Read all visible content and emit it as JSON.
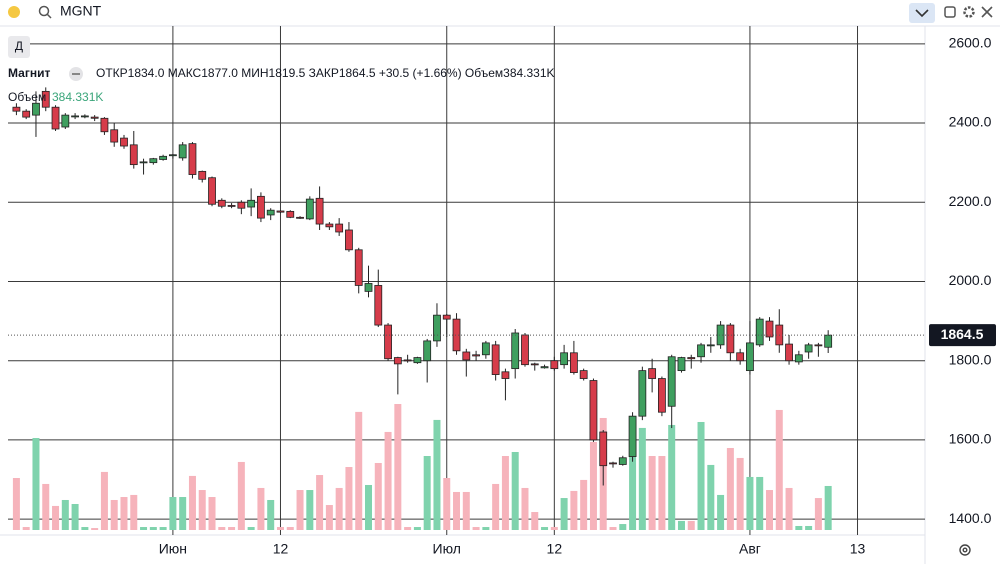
{
  "toolbar": {
    "symbol": "MGNT",
    "interval": "Д"
  },
  "chart_data": {
    "type": "candlestick",
    "title": "Магнит",
    "legend_text": "ОТКР1834.0 МАКС1877.0 МИН1819.5 ЗАКР1864.5 +30.5 (+1.66%) Объем384.331K",
    "volume_label": "Объем",
    "volume_value_label": "384.331K",
    "open": [
      2440,
      2430,
      2420,
      2480,
      2440,
      2390,
      2418,
      2418,
      2415,
      2412,
      2383,
      2362,
      2345,
      2300,
      2300,
      2308,
      2318,
      2312,
      2348,
      2278,
      2262,
      2205,
      2192,
      2200,
      2188,
      2215,
      2168,
      2178,
      2177,
      2162,
      2158,
      2210,
      2145,
      2145,
      2130,
      2080,
      1975,
      1990,
      1890,
      1808,
      1802,
      1795,
      1800,
      1850,
      1915,
      1905,
      1822,
      1815,
      1815,
      1840,
      1772,
      1780,
      1865,
      1792,
      1782,
      1800,
      1790,
      1820,
      1775,
      1750,
      1620,
      1542,
      1538,
      1558,
      1660,
      1780,
      1755,
      1685,
      1775,
      1808,
      1810,
      1838,
      1840,
      1890,
      1820,
      1775,
      1840,
      1900,
      1890,
      1842,
      1797,
      1822,
      1840,
      1834.0
    ],
    "high": [
      2450,
      2435,
      2480,
      2490,
      2445,
      2425,
      2425,
      2422,
      2420,
      2415,
      2400,
      2370,
      2380,
      2310,
      2312,
      2320,
      2322,
      2352,
      2352,
      2280,
      2265,
      2210,
      2198,
      2205,
      2235,
      2225,
      2185,
      2180,
      2180,
      2165,
      2215,
      2240,
      2150,
      2160,
      2150,
      2085,
      2040,
      2030,
      1895,
      1810,
      1815,
      1810,
      1855,
      1945,
      1918,
      1920,
      1830,
      1825,
      1850,
      1850,
      1780,
      1880,
      1870,
      1795,
      1790,
      1810,
      1840,
      1850,
      1780,
      1755,
      1625,
      1545,
      1560,
      1670,
      1785,
      1805,
      1760,
      1815,
      1810,
      1815,
      1845,
      1860,
      1900,
      1895,
      1830,
      1900,
      1910,
      1910,
      1930,
      1865,
      1825,
      1845,
      1845,
      1877.0
    ],
    "low": [
      2420,
      2410,
      2365,
      2430,
      2380,
      2385,
      2410,
      2412,
      2405,
      2370,
      2340,
      2335,
      2285,
      2270,
      2295,
      2305,
      2310,
      2305,
      2260,
      2250,
      2190,
      2185,
      2185,
      2170,
      2165,
      2150,
      2155,
      2172,
      2160,
      2158,
      2155,
      2130,
      2130,
      2115,
      2075,
      1970,
      1960,
      1885,
      1800,
      1715,
      1795,
      1792,
      1745,
      1835,
      1860,
      1815,
      1760,
      1800,
      1805,
      1750,
      1700,
      1755,
      1785,
      1775,
      1780,
      1775,
      1780,
      1765,
      1750,
      1595,
      1485,
      1530,
      1535,
      1545,
      1650,
      1720,
      1660,
      1630,
      1770,
      1780,
      1795,
      1820,
      1830,
      1800,
      1790,
      1765,
      1835,
      1850,
      1820,
      1790,
      1790,
      1805,
      1810,
      1819.5
    ],
    "close": [
      2430,
      2415,
      2450,
      2440,
      2385,
      2420,
      2418,
      2418,
      2412,
      2378,
      2352,
      2342,
      2295,
      2302,
      2310,
      2316,
      2320,
      2345,
      2270,
      2258,
      2195,
      2190,
      2190,
      2185,
      2205,
      2160,
      2180,
      2175,
      2162,
      2160,
      2208,
      2145,
      2138,
      2125,
      2080,
      1990,
      1995,
      1890,
      1805,
      1792,
      1800,
      1808,
      1850,
      1915,
      1905,
      1825,
      1802,
      1812,
      1845,
      1765,
      1755,
      1870,
      1790,
      1790,
      1785,
      1780,
      1820,
      1770,
      1755,
      1600,
      1535,
      1540,
      1555,
      1660,
      1775,
      1755,
      1670,
      1810,
      1808,
      1805,
      1840,
      1840,
      1890,
      1820,
      1800,
      1845,
      1905,
      1860,
      1840,
      1800,
      1815,
      1840,
      1838,
      1864.5
    ],
    "volume": [
      454,
      26,
      803,
      402,
      210,
      262,
      227,
      26,
      17,
      507,
      262,
      288,
      306,
      26,
      26,
      26,
      288,
      288,
      472,
      349,
      288,
      26,
      26,
      594,
      26,
      367,
      262,
      26,
      26,
      349,
      349,
      480,
      218,
      367,
      550,
      1031,
      393,
      585,
      856,
      1100,
      26,
      26,
      646,
      961,
      454,
      332,
      332,
      26,
      26,
      402,
      646,
      681,
      367,
      157,
      26,
      26,
      279,
      341,
      437,
      769,
      978,
      26,
      52,
      769,
      891,
      646,
      646,
      917,
      79,
      79,
      943,
      568,
      306,
      716,
      629,
      463,
      463,
      349,
      1048,
      367,
      35,
      35,
      279,
      384.331
    ],
    "last_price": 1864.5,
    "xlim": [
      -0.86,
      92.9
    ],
    "xticks": [
      {
        "value": 16,
        "label": "Июн"
      },
      {
        "value": 27,
        "label": "12"
      },
      {
        "value": 44,
        "label": "Июл"
      },
      {
        "value": 55,
        "label": "12"
      },
      {
        "value": 75,
        "label": "Авг"
      },
      {
        "value": 86,
        "label": "13"
      }
    ],
    "ylim": [
      1360,
      2645
    ],
    "yticks": [
      {
        "value": 1400,
        "label": "1400.0"
      },
      {
        "value": 1600,
        "label": "1600.0"
      },
      {
        "value": 1800,
        "label": "1800.0"
      },
      {
        "value": 2000,
        "label": "2000.0"
      },
      {
        "value": 2200,
        "label": "2200.0"
      },
      {
        "value": 2400,
        "label": "2400.0"
      },
      {
        "value": 2600,
        "label": "2600.0"
      }
    ],
    "vlim": [
      0,
      1100
    ],
    "grid": true,
    "up_color": "#3f9f5f",
    "down_color": "#d63c4a",
    "volume_up_color": "#7fd3ad",
    "volume_down_color": "#f6b3bb"
  }
}
